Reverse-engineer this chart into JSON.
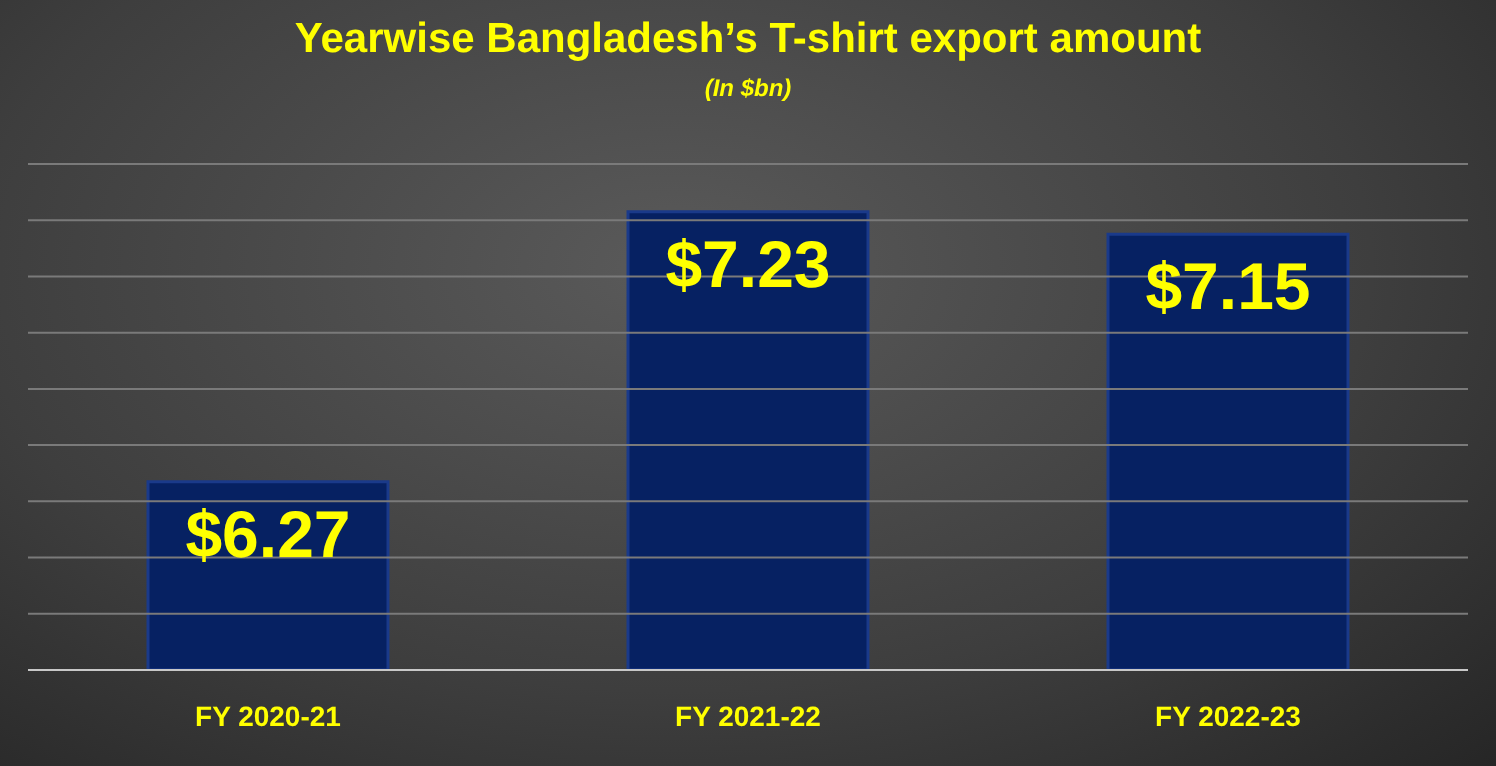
{
  "chart_data": {
    "type": "bar",
    "title": "Yearwise Bangladesh’s T-shirt export amount",
    "subtitle": "(In $bn)",
    "categories": [
      "FY 2020-21",
      "FY 2021-22",
      "FY 2022-23"
    ],
    "values": [
      6.27,
      7.23,
      7.15
    ],
    "color": "#062162",
    "value_labels": [
      "$6.27",
      "$7.23",
      "$7.15"
    ],
    "ylim": [
      5.6,
      7.4
    ],
    "yticks": [
      {
        "value": 5.6,
        "label": null
      },
      {
        "value": 5.8,
        "label": null
      },
      {
        "value": 6.0,
        "label": null
      },
      {
        "value": 6.2,
        "label": null
      },
      {
        "value": 6.4,
        "label": null
      },
      {
        "value": 6.6,
        "label": null
      },
      {
        "value": 6.8,
        "label": null
      },
      {
        "value": 7.0,
        "label": null
      },
      {
        "value": 7.2,
        "label": null
      },
      {
        "value": 7.4,
        "label": null
      }
    ],
    "grid": "y",
    "tick_labels": "x",
    "legend": false
  }
}
